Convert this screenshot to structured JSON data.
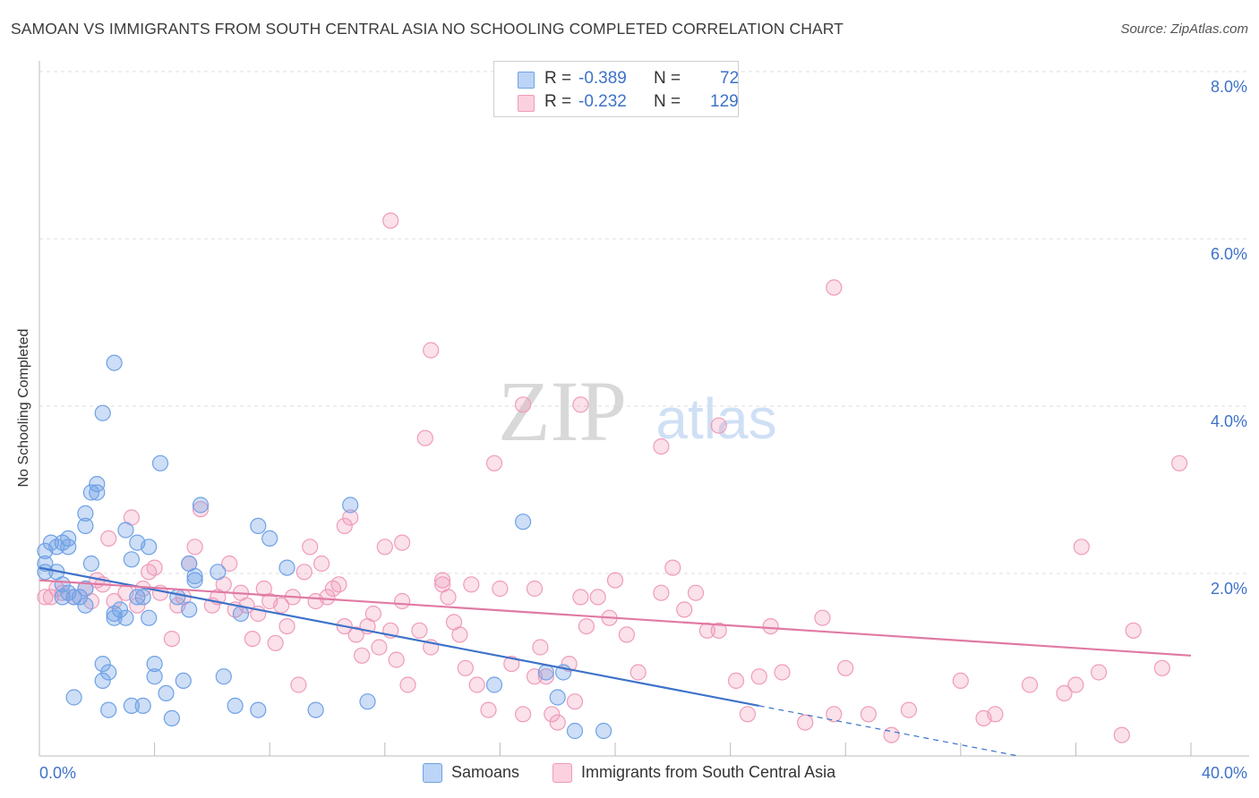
{
  "header": {
    "title": "SAMOAN VS IMMIGRANTS FROM SOUTH CENTRAL ASIA NO SCHOOLING COMPLETED CORRELATION CHART",
    "source": "Source: ZipAtlas.com"
  },
  "watermark": {
    "zip": "ZIP",
    "atlas": "atlas"
  },
  "stats_legend": {
    "rows": [
      {
        "r_label": "R =",
        "r_value": "-0.389",
        "n_label": "N =",
        "n_value": "72",
        "color": "#6fa1e6"
      },
      {
        "r_label": "R =",
        "r_value": "-0.232",
        "n_label": "N =",
        "n_value": "129",
        "color": "#f09bbb"
      }
    ]
  },
  "bottom_legend": [
    {
      "label": "Samoans",
      "color": "#6fa1e6"
    },
    {
      "label": "Immigrants from South Central Asia",
      "color": "#f09bbb"
    }
  ],
  "chart_data": {
    "type": "scatter",
    "title": "SAMOAN VS IMMIGRANTS FROM SOUTH CENTRAL ASIA NO SCHOOLING COMPLETED CORRELATION CHART",
    "ylabel": "No Schooling Completed",
    "xlabel": "",
    "xlim": [
      0,
      40
    ],
    "ylim": [
      0,
      8
    ],
    "x_tick_labels": [
      {
        "value": 0,
        "label": "0.0%"
      },
      {
        "value": 40,
        "label": "40.0%"
      }
    ],
    "y_tick_labels": [
      {
        "value": 2,
        "label": "2.0%"
      },
      {
        "value": 4,
        "label": "4.0%"
      },
      {
        "value": 6,
        "label": "6.0%"
      },
      {
        "value": 8,
        "label": "8.0%"
      }
    ],
    "x_minor_ticks": [
      4,
      8,
      12,
      16,
      20,
      24,
      28,
      32,
      36,
      40
    ],
    "grid": "dashed horizontal",
    "legend_position": "top-center",
    "series": [
      {
        "name": "Samoans",
        "color": "#6fa1e6",
        "trend": {
          "x1": 0,
          "y1": 2.25,
          "x2": 25,
          "y2": 0.6,
          "dashed_to_x": 34,
          "dashed_to_y": 0.0
        },
        "points": [
          [
            0.2,
            2.45
          ],
          [
            0.2,
            2.3
          ],
          [
            0.2,
            2.2
          ],
          [
            0.4,
            2.55
          ],
          [
            0.6,
            2.5
          ],
          [
            0.6,
            2.2
          ],
          [
            0.8,
            2.55
          ],
          [
            0.8,
            2.05
          ],
          [
            1.0,
            1.95
          ],
          [
            1.0,
            2.5
          ],
          [
            1.2,
            1.9
          ],
          [
            1.4,
            1.9
          ],
          [
            1.6,
            1.8
          ],
          [
            1.6,
            2.75
          ],
          [
            1.6,
            2.0
          ],
          [
            1.6,
            2.9
          ],
          [
            1.8,
            3.15
          ],
          [
            2.0,
            3.15
          ],
          [
            1.8,
            2.3
          ],
          [
            2.0,
            3.25
          ],
          [
            2.2,
            4.1
          ],
          [
            2.6,
            4.7
          ],
          [
            2.2,
            1.1
          ],
          [
            2.4,
            1.0
          ],
          [
            2.4,
            0.55
          ],
          [
            2.6,
            1.65
          ],
          [
            2.6,
            1.7
          ],
          [
            2.8,
            1.75
          ],
          [
            3.0,
            1.65
          ],
          [
            3.4,
            1.9
          ],
          [
            3.2,
            2.35
          ],
          [
            3.4,
            2.55
          ],
          [
            3.0,
            2.7
          ],
          [
            3.6,
            1.9
          ],
          [
            3.6,
            0.6
          ],
          [
            3.8,
            1.65
          ],
          [
            4.0,
            1.1
          ],
          [
            4.0,
            0.95
          ],
          [
            4.2,
            3.5
          ],
          [
            4.4,
            0.75
          ],
          [
            4.6,
            0.45
          ],
          [
            4.8,
            1.9
          ],
          [
            5.0,
            0.9
          ],
          [
            5.2,
            2.3
          ],
          [
            5.2,
            1.75
          ],
          [
            5.4,
            2.1
          ],
          [
            5.4,
            2.15
          ],
          [
            5.6,
            3.0
          ],
          [
            6.2,
            2.2
          ],
          [
            6.4,
            0.95
          ],
          [
            6.8,
            0.6
          ],
          [
            7.0,
            1.7
          ],
          [
            7.6,
            0.55
          ],
          [
            7.6,
            2.75
          ],
          [
            8.0,
            2.6
          ],
          [
            8.6,
            2.25
          ],
          [
            9.6,
            0.55
          ],
          [
            10.8,
            3.0
          ],
          [
            11.4,
            0.65
          ],
          [
            15.8,
            0.85
          ],
          [
            16.8,
            2.8
          ],
          [
            17.6,
            1.0
          ],
          [
            18.0,
            0.7
          ],
          [
            18.2,
            1.0
          ],
          [
            18.6,
            0.3
          ],
          [
            19.6,
            0.3
          ],
          [
            3.2,
            0.6
          ],
          [
            2.2,
            0.9
          ],
          [
            1.2,
            0.7
          ],
          [
            0.8,
            1.9
          ],
          [
            3.8,
            2.5
          ],
          [
            1.0,
            2.6
          ]
        ]
      },
      {
        "name": "Immigrants from South Central Asia",
        "color": "#f09bbb",
        "trend": {
          "x1": 0,
          "y1": 2.1,
          "x2": 40,
          "y2": 1.2
        },
        "points": [
          [
            0.2,
            1.9
          ],
          [
            0.4,
            1.9
          ],
          [
            0.6,
            2.0
          ],
          [
            0.8,
            1.95
          ],
          [
            1.2,
            1.9
          ],
          [
            1.6,
            2.0
          ],
          [
            1.8,
            1.85
          ],
          [
            2.0,
            2.1
          ],
          [
            2.2,
            2.05
          ],
          [
            2.4,
            2.6
          ],
          [
            2.6,
            1.85
          ],
          [
            3.0,
            1.95
          ],
          [
            3.2,
            2.85
          ],
          [
            3.4,
            1.8
          ],
          [
            3.6,
            2.0
          ],
          [
            3.8,
            2.2
          ],
          [
            4.0,
            2.25
          ],
          [
            4.2,
            1.95
          ],
          [
            4.6,
            1.4
          ],
          [
            4.8,
            1.8
          ],
          [
            5.0,
            1.9
          ],
          [
            5.2,
            2.3
          ],
          [
            5.4,
            2.5
          ],
          [
            5.6,
            2.95
          ],
          [
            6.0,
            1.8
          ],
          [
            6.2,
            1.9
          ],
          [
            6.4,
            2.05
          ],
          [
            6.6,
            2.3
          ],
          [
            6.8,
            1.75
          ],
          [
            7.0,
            1.95
          ],
          [
            7.2,
            1.8
          ],
          [
            7.4,
            1.4
          ],
          [
            7.6,
            1.7
          ],
          [
            7.8,
            2.0
          ],
          [
            8.0,
            1.85
          ],
          [
            8.2,
            1.35
          ],
          [
            8.4,
            1.8
          ],
          [
            8.6,
            1.55
          ],
          [
            8.8,
            1.9
          ],
          [
            9.0,
            0.85
          ],
          [
            9.2,
            2.2
          ],
          [
            9.4,
            2.5
          ],
          [
            9.6,
            1.85
          ],
          [
            9.8,
            2.3
          ],
          [
            10.0,
            1.9
          ],
          [
            10.2,
            2.0
          ],
          [
            10.4,
            2.05
          ],
          [
            10.6,
            1.55
          ],
          [
            10.8,
            2.85
          ],
          [
            11.0,
            1.45
          ],
          [
            11.2,
            1.2
          ],
          [
            11.4,
            1.55
          ],
          [
            11.6,
            1.7
          ],
          [
            11.8,
            1.3
          ],
          [
            12.0,
            2.5
          ],
          [
            12.2,
            1.5
          ],
          [
            12.4,
            1.15
          ],
          [
            12.6,
            1.85
          ],
          [
            12.8,
            0.85
          ],
          [
            13.2,
            1.5
          ],
          [
            13.6,
            1.3
          ],
          [
            14.0,
            2.05
          ],
          [
            14.2,
            1.9
          ],
          [
            14.4,
            1.6
          ],
          [
            14.6,
            1.45
          ],
          [
            14.8,
            1.05
          ],
          [
            15.0,
            2.05
          ],
          [
            15.2,
            0.85
          ],
          [
            15.6,
            0.55
          ],
          [
            16.0,
            2.0
          ],
          [
            16.4,
            1.1
          ],
          [
            16.8,
            0.5
          ],
          [
            17.2,
            0.95
          ],
          [
            17.4,
            1.3
          ],
          [
            17.6,
            0.95
          ],
          [
            17.8,
            0.5
          ],
          [
            18.0,
            0.4
          ],
          [
            18.4,
            1.1
          ],
          [
            18.6,
            0.65
          ],
          [
            18.8,
            1.9
          ],
          [
            19.0,
            1.55
          ],
          [
            19.4,
            1.9
          ],
          [
            19.8,
            1.65
          ],
          [
            20.4,
            1.45
          ],
          [
            20.8,
            1.0
          ],
          [
            21.6,
            1.95
          ],
          [
            22.0,
            2.25
          ],
          [
            22.4,
            1.75
          ],
          [
            22.8,
            1.95
          ],
          [
            23.2,
            1.5
          ],
          [
            23.6,
            1.5
          ],
          [
            24.2,
            0.9
          ],
          [
            24.6,
            0.5
          ],
          [
            25.0,
            0.95
          ],
          [
            25.4,
            1.55
          ],
          [
            25.8,
            1.0
          ],
          [
            26.6,
            0.4
          ],
          [
            27.2,
            1.65
          ],
          [
            27.6,
            0.5
          ],
          [
            28.0,
            1.05
          ],
          [
            28.8,
            0.5
          ],
          [
            29.6,
            0.25
          ],
          [
            30.2,
            0.55
          ],
          [
            32.0,
            0.9
          ],
          [
            32.8,
            0.45
          ],
          [
            33.2,
            0.5
          ],
          [
            34.4,
            0.85
          ],
          [
            35.6,
            0.75
          ],
          [
            36.0,
            0.85
          ],
          [
            36.8,
            1.0
          ],
          [
            37.6,
            0.25
          ],
          [
            38.0,
            1.5
          ],
          [
            39.0,
            1.05
          ],
          [
            12.2,
            6.4
          ],
          [
            13.6,
            4.85
          ],
          [
            13.4,
            3.8
          ],
          [
            16.8,
            4.2
          ],
          [
            18.8,
            4.2
          ],
          [
            21.6,
            3.7
          ],
          [
            23.6,
            3.95
          ],
          [
            27.6,
            5.6
          ],
          [
            15.8,
            3.5
          ],
          [
            14.0,
            2.1
          ],
          [
            17.2,
            2.0
          ],
          [
            20.0,
            2.1
          ],
          [
            36.2,
            2.5
          ],
          [
            39.6,
            3.5
          ],
          [
            12.6,
            2.55
          ],
          [
            10.6,
            2.75
          ]
        ]
      }
    ]
  }
}
